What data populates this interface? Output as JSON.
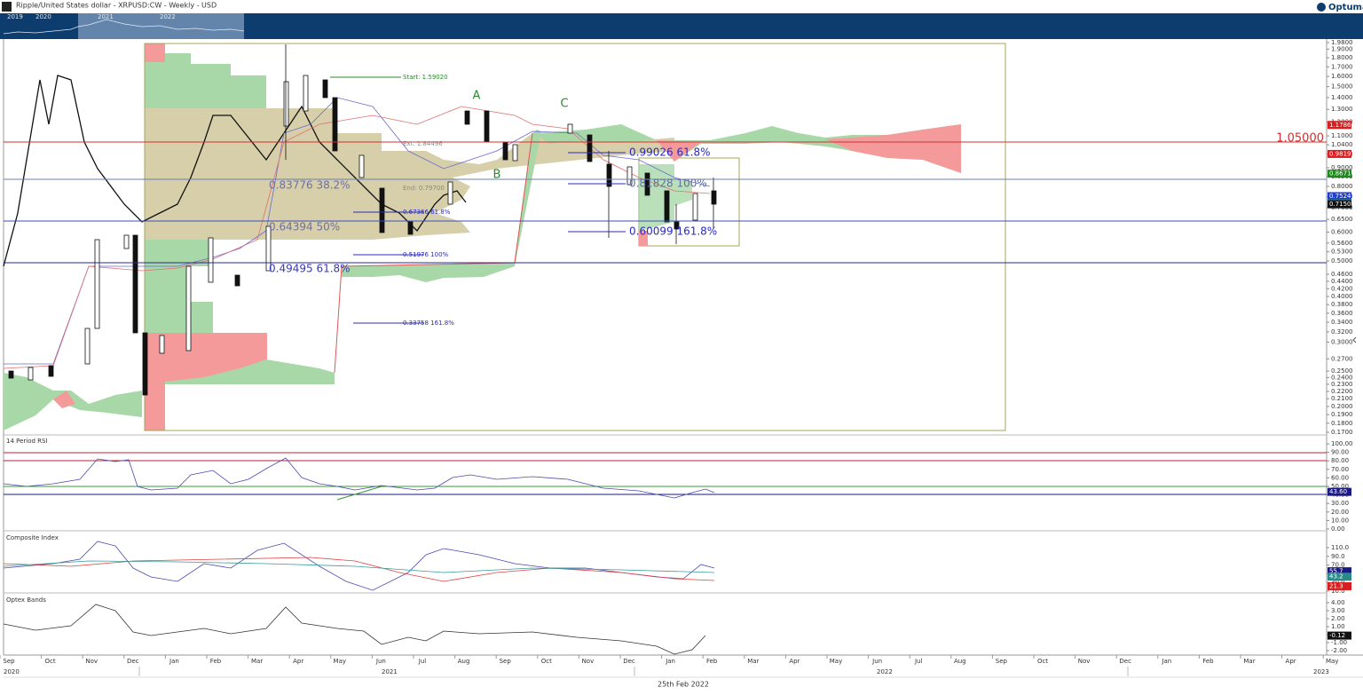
{
  "header": {
    "title": "Ripple/United States dollar - XRPUSD:CW - Weekly - USD",
    "logo": "Optuma"
  },
  "navigator": {
    "years": [
      "2019",
      "2020",
      "2021",
      "2022"
    ]
  },
  "price_axis": {
    "ticks": [
      "1.9800",
      "1.9000",
      "1.8000",
      "1.7000",
      "1.6000",
      "1.5000",
      "1.4000",
      "1.3000",
      "1.2000",
      "1.1000",
      "1.0400",
      "0.9800",
      "0.9000",
      "0.8500",
      "0.8000",
      "0.7500",
      "0.7000",
      "0.6500",
      "0.6000",
      "0.5600",
      "0.5300",
      "0.5000",
      "0.4600",
      "0.4400",
      "0.4200",
      "0.4000",
      "0.3800",
      "0.3600",
      "0.3400",
      "0.3200",
      "0.3000",
      "0.2700",
      "0.2500",
      "0.2400",
      "0.2300",
      "0.2200",
      "0.2100",
      "0.2000",
      "0.1900",
      "0.1800",
      "0.1700"
    ],
    "markers": [
      {
        "label": "1.1786",
        "color": "#d81e1e"
      },
      {
        "label": "0.9819",
        "color": "#d81e1e"
      },
      {
        "label": "0.8671",
        "color": "#1e8a1e"
      },
      {
        "label": "0.7524",
        "color": "#1e3cd8"
      },
      {
        "label": "0.7190",
        "color": "#1ea01e"
      },
      {
        "label": "0.7150",
        "color": "#111111"
      }
    ]
  },
  "annotations": {
    "start": "Start: 1.59020",
    "ext": "Ext. 1.84496",
    "end": "End: 0.79700",
    "fib_small": [
      "0.67366    61.8%",
      "0.51976    100%",
      "0.33758    161.8%"
    ],
    "retracements": [
      "0.83776   38.2%",
      "0.64394   50%",
      "0.49495   61.8%"
    ],
    "projections": [
      "0.99026   61.8%",
      "0.81828   100%",
      "0.60099   161.8%"
    ],
    "waves": [
      "A",
      "B",
      "C"
    ],
    "level": "1.05000"
  },
  "panels": [
    {
      "title": "14 Period RSI",
      "ticks": [
        "100.00",
        "90.00",
        "80.00",
        "70.00",
        "60.00",
        "50.00",
        "40.00",
        "30.00",
        "20.00",
        "10.00",
        "0.00"
      ],
      "markers": [
        {
          "label": "43.60",
          "color": "#1a1a80"
        }
      ]
    },
    {
      "title": "Composite Index",
      "ticks": [
        "110.0",
        "90.0",
        "70.0",
        "50.0",
        "30.0",
        "10.0"
      ],
      "markers": [
        {
          "label": "55.7",
          "color": "#1a1a80"
        },
        {
          "label": "43.2",
          "color": "#2a8a8a"
        },
        {
          "label": "21.3",
          "color": "#d81e1e"
        }
      ]
    },
    {
      "title": "Optex Bands",
      "ticks": [
        "4.00",
        "3.00",
        "2.00",
        "1.00",
        "0.00",
        "-1.00",
        "-2.00"
      ],
      "markers": [
        {
          "label": "-0.12",
          "color": "#111111"
        }
      ]
    }
  ],
  "time_axis": {
    "months": [
      "Sep",
      "Oct",
      "Nov",
      "Dec",
      "Jan",
      "Feb",
      "Mar",
      "Apr",
      "May",
      "Jun",
      "Jul",
      "Aug",
      "Sep",
      "Oct",
      "Nov",
      "Dec",
      "Jan",
      "Feb",
      "Mar",
      "Apr",
      "May",
      "Jun",
      "Jul",
      "Aug",
      "Sep",
      "Oct",
      "Nov",
      "Dec",
      "Jan",
      "Feb",
      "Mar",
      "Apr",
      "May"
    ],
    "years": [
      "2020",
      "2021",
      "2022",
      "2023"
    ],
    "cursor": "25th Feb 2022"
  }
}
